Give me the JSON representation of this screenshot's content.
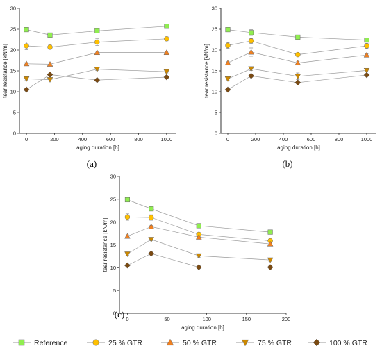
{
  "colors": {
    "Reference": "#90ee50",
    "25 % GTR": "#ffc000",
    "50 % GTR": "#f08020",
    "75 % GTR": "#cc8800",
    "100 % GTR": "#7a4a12",
    "line": "#9a9a9a"
  },
  "marker_shapes": {
    "Reference": "square",
    "25 % GTR": "circle",
    "50 % GTR": "triangle-up",
    "75 % GTR": "triangle-down",
    "100 % GTR": "diamond"
  },
  "legend": {
    "placement": "bottom",
    "entries": [
      "Reference",
      "25 % GTR",
      "50 % GTR",
      "75 % GTR",
      "100 % GTR"
    ]
  },
  "chart_data": [
    {
      "type": "line",
      "panel_label": "(a)",
      "xlabel": "aging duration [h]",
      "ylabel": "tear resistance [kN/m]",
      "xlim": [
        -50,
        1070
      ],
      "ylim": [
        0,
        30
      ],
      "xticks": [
        0,
        200,
        400,
        600,
        800,
        1000
      ],
      "yticks": [
        0,
        5,
        10,
        15,
        20,
        25,
        30
      ],
      "grid": false,
      "x": [
        0,
        168,
        504,
        1000
      ],
      "series": [
        {
          "name": "Reference",
          "values": [
            24.9,
            23.6,
            24.6,
            25.7
          ],
          "err": [
            0.3,
            0.3,
            0.3,
            0.3
          ]
        },
        {
          "name": "25 % GTR",
          "values": [
            21.0,
            20.7,
            21.9,
            22.7
          ],
          "err": [
            0.9,
            0.5,
            0.8,
            0.5
          ]
        },
        {
          "name": "50 % GTR",
          "values": [
            16.7,
            16.6,
            19.4,
            19.4
          ],
          "err": [
            0.3,
            0.3,
            0.3,
            0.3
          ]
        },
        {
          "name": "75 % GTR",
          "values": [
            13.1,
            12.9,
            15.4,
            14.8
          ],
          "err": [
            0.3,
            0.3,
            0.3,
            0.3
          ]
        },
        {
          "name": "100 % GTR",
          "values": [
            10.5,
            14.1,
            12.8,
            13.5
          ],
          "err": [
            0.3,
            0.3,
            0.3,
            0.3
          ]
        }
      ]
    },
    {
      "type": "line",
      "panel_label": "(b)",
      "xlabel": "aging duration [h]",
      "ylabel": "tear resistance [kN/m]",
      "xlim": [
        -50,
        1070
      ],
      "ylim": [
        0,
        30
      ],
      "xticks": [
        0,
        200,
        400,
        600,
        800,
        1000
      ],
      "yticks": [
        0,
        5,
        10,
        15,
        20,
        25,
        30
      ],
      "grid": false,
      "x": [
        0,
        168,
        504,
        1000
      ],
      "series": [
        {
          "name": "Reference",
          "values": [
            24.9,
            24.2,
            23.1,
            22.4
          ],
          "err": [
            0.3,
            0.7,
            0.4,
            0.4
          ]
        },
        {
          "name": "25 % GTR",
          "values": [
            21.1,
            22.2,
            18.9,
            21.0
          ],
          "err": [
            0.7,
            0.6,
            0.4,
            0.6
          ]
        },
        {
          "name": "50 % GTR",
          "values": [
            16.9,
            19.5,
            16.9,
            18.8
          ],
          "err": [
            0.3,
            1.0,
            0.3,
            0.3
          ]
        },
        {
          "name": "75 % GTR",
          "values": [
            13.1,
            15.5,
            13.7,
            15.1
          ],
          "err": [
            0.3,
            0.4,
            0.8,
            0.3
          ]
        },
        {
          "name": "100 % GTR",
          "values": [
            10.5,
            13.8,
            12.2,
            14.0
          ],
          "err": [
            0.3,
            0.3,
            0.3,
            0.3
          ]
        }
      ]
    },
    {
      "type": "line",
      "panel_label": "(c)",
      "xlabel": "aging duration [h]",
      "ylabel": "tear resistance [kN/m]",
      "xlim": [
        -10,
        200
      ],
      "ylim": [
        0,
        30
      ],
      "xticks": [
        0,
        50,
        100,
        150,
        200
      ],
      "yticks": [
        0,
        5,
        10,
        15,
        20,
        25,
        30
      ],
      "grid": false,
      "x": [
        0,
        30,
        90,
        180
      ],
      "series": [
        {
          "name": "Reference",
          "values": [
            24.9,
            22.9,
            19.2,
            17.8
          ],
          "err": [
            0.3,
            0.4,
            0.3,
            0.4
          ]
        },
        {
          "name": "25 % GTR",
          "values": [
            21.1,
            21.0,
            17.3,
            15.9
          ],
          "err": [
            0.7,
            0.6,
            0.4,
            0.4
          ]
        },
        {
          "name": "50 % GTR",
          "values": [
            16.9,
            19.0,
            16.7,
            15.2
          ],
          "err": [
            0.3,
            0.3,
            0.3,
            0.3
          ]
        },
        {
          "name": "75 % GTR",
          "values": [
            13.0,
            16.2,
            12.6,
            11.7
          ],
          "err": [
            0.3,
            0.3,
            0.3,
            0.3
          ]
        },
        {
          "name": "100 % GTR",
          "values": [
            10.5,
            13.1,
            10.1,
            10.1
          ],
          "err": [
            0.3,
            0.3,
            0.3,
            0.3
          ]
        }
      ]
    }
  ]
}
